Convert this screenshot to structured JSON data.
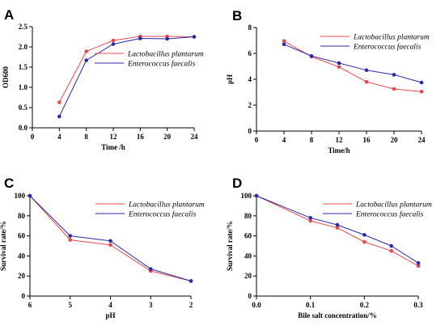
{
  "colors": {
    "series1": "#e8474f",
    "series2": "#2a2aa8",
    "axis": "#000000"
  },
  "chart_data": [
    {
      "panel": "A",
      "type": "line",
      "xlabel": "Time /h",
      "ylabel": "OD600",
      "xlim": [
        0,
        24
      ],
      "ylim": [
        0,
        2.5
      ],
      "x_ticks": [
        0,
        4,
        8,
        12,
        16,
        20,
        24
      ],
      "x_tick_labels": [
        "0",
        "4",
        "8",
        "12",
        "16",
        "20",
        "24"
      ],
      "y_ticks": [
        0,
        0.5,
        1.0,
        1.5,
        2.0,
        2.5
      ],
      "y_tick_labels": [
        "0.0",
        "0.5",
        "1.0",
        "1.5",
        "2.0",
        "2.5"
      ],
      "x": [
        4,
        8,
        12,
        16,
        20,
        24
      ],
      "series": [
        {
          "name": "Lactobacillus plantarum",
          "values": [
            0.63,
            1.89,
            2.16,
            2.26,
            2.26,
            2.25
          ]
        },
        {
          "name": "Enterococcus faecalis",
          "values": [
            0.28,
            1.67,
            2.07,
            2.21,
            2.2,
            2.25
          ]
        }
      ],
      "legend": "top-right"
    },
    {
      "panel": "B",
      "type": "line",
      "xlabel": "Time/h",
      "ylabel": "pH",
      "xlim": [
        0,
        24
      ],
      "ylim": [
        0,
        8
      ],
      "x_ticks": [
        0,
        4,
        8,
        12,
        16,
        20,
        24
      ],
      "x_tick_labels": [
        "0",
        "4",
        "8",
        "12",
        "16",
        "20",
        "24"
      ],
      "y_ticks": [
        0,
        2,
        4,
        6,
        8
      ],
      "y_tick_labels": [
        "0",
        "2",
        "4",
        "6",
        "8"
      ],
      "x": [
        4,
        8,
        12,
        16,
        20,
        24
      ],
      "series": [
        {
          "name": "Lactobacillus plantarum",
          "values": [
            6.95,
            5.75,
            4.95,
            3.8,
            3.25,
            3.05
          ]
        },
        {
          "name": "Enterococcus faecalis",
          "values": [
            6.7,
            5.8,
            5.25,
            4.7,
            4.35,
            3.75
          ]
        }
      ],
      "legend": "top-right"
    },
    {
      "panel": "C",
      "type": "line",
      "xlabel": "pH",
      "ylabel": "Survival rate/%",
      "xlim": [
        6,
        2
      ],
      "ylim": [
        0,
        100
      ],
      "x_ticks": [
        6,
        5,
        4,
        3,
        2
      ],
      "x_tick_labels": [
        "6",
        "5",
        "4",
        "3",
        "2"
      ],
      "y_ticks": [
        0,
        20,
        40,
        60,
        80,
        100
      ],
      "y_tick_labels": [
        "0",
        "20",
        "40",
        "60",
        "80",
        "100"
      ],
      "x": [
        6,
        5,
        4,
        3,
        2
      ],
      "series": [
        {
          "name": "Lactobacillus plantarum",
          "values": [
            100,
            56,
            51,
            25,
            15
          ]
        },
        {
          "name": "Enterococcus faecalis",
          "values": [
            100,
            60,
            55,
            27,
            15
          ]
        }
      ],
      "legend": "top-right"
    },
    {
      "panel": "D",
      "type": "line",
      "xlabel": "Bile salt concentration/%",
      "ylabel": "Survival rate/%",
      "xlim": [
        0,
        0.3
      ],
      "ylim": [
        0,
        100
      ],
      "x_ticks": [
        0,
        0.1,
        0.2,
        0.3
      ],
      "x_tick_labels": [
        "0.0",
        "0.1",
        "0.2",
        "0.3"
      ],
      "y_ticks": [
        0,
        20,
        40,
        60,
        80,
        100
      ],
      "y_tick_labels": [
        "0",
        "20",
        "40",
        "60",
        "80",
        "100"
      ],
      "x": [
        0,
        0.1,
        0.15,
        0.2,
        0.25,
        0.3
      ],
      "series": [
        {
          "name": "Lactobacillus plantarum",
          "values": [
            100,
            75,
            68,
            54,
            45,
            30
          ]
        },
        {
          "name": "Enterococcus faecalis",
          "values": [
            100,
            78,
            71,
            61,
            50,
            33
          ]
        }
      ],
      "legend": "top-right"
    }
  ]
}
